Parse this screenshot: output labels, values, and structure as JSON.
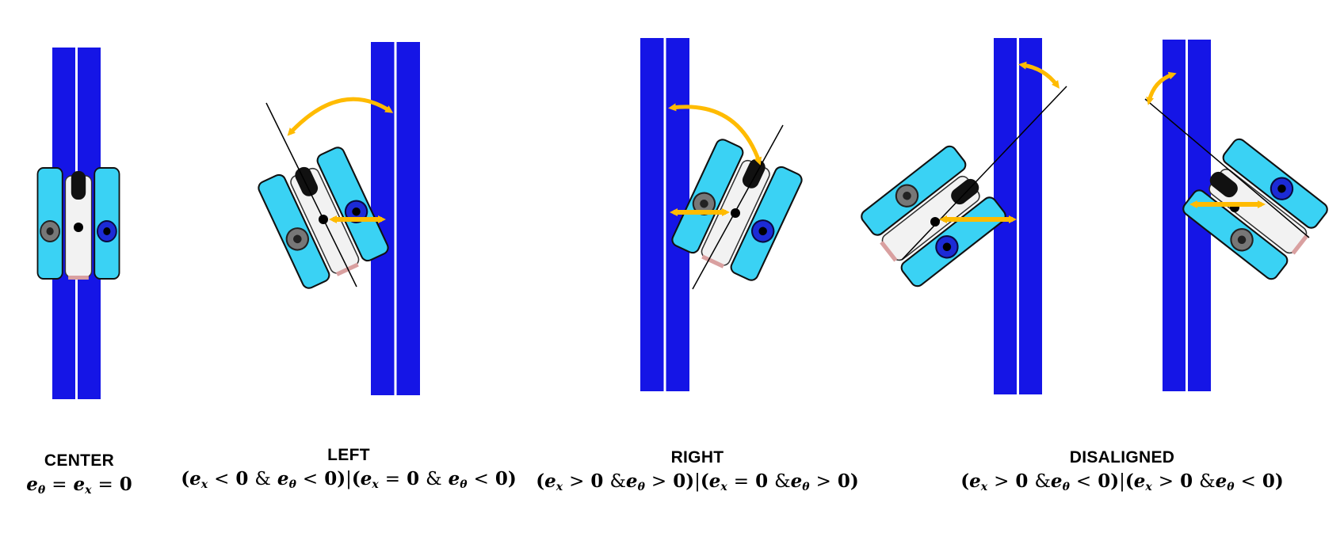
{
  "panels": [
    {
      "id": "center",
      "title": "CENTER"
    },
    {
      "id": "left",
      "title": "LEFT"
    },
    {
      "id": "right",
      "title": "RIGHT"
    },
    {
      "id": "disaligned",
      "title": "DISALIGNED"
    }
  ],
  "formula_tokens": {
    "e": "e",
    "x": "x",
    "theta": "θ",
    "zero": "0",
    "eq": "=",
    "lt": "<",
    "gt": ">",
    "amp": "&",
    "bar": "|",
    "lp": "(",
    "rp": ")"
  },
  "colors": {
    "track": "#1515e6",
    "track_line": "#ffffff",
    "pontoon": "#3ad2f4",
    "hull": "#f2f2f2",
    "arrow": "#ffbb00",
    "thruster": "#1c2bd6"
  }
}
